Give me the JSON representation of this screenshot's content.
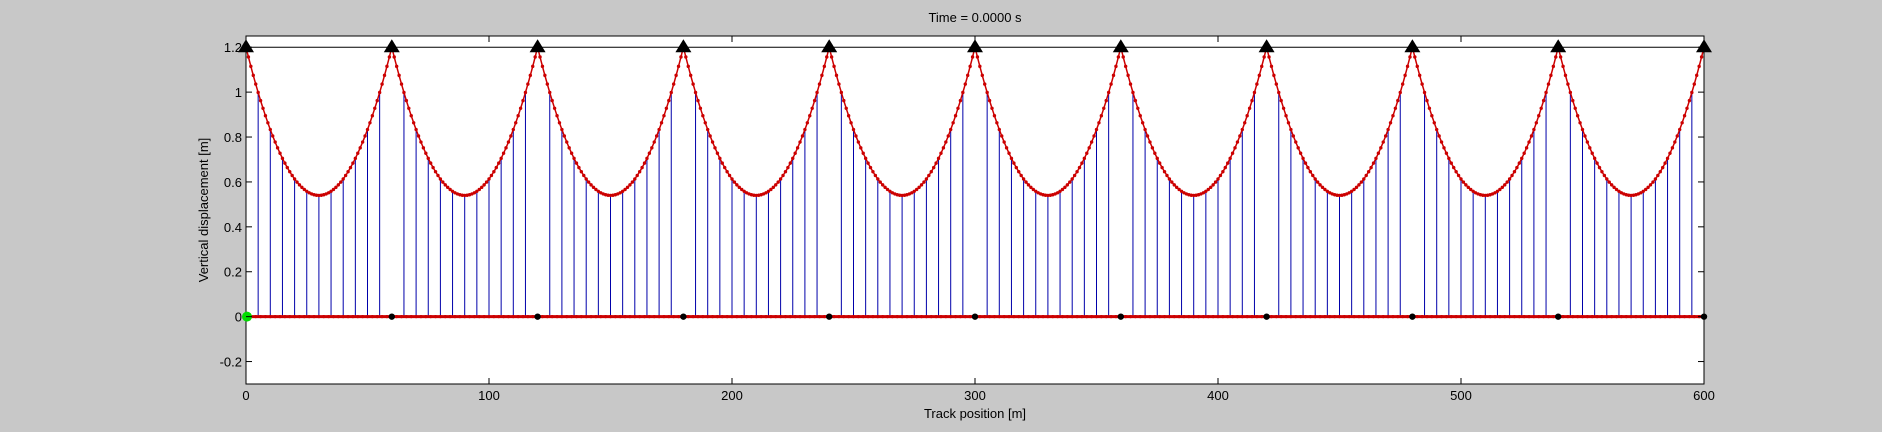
{
  "chart_data": {
    "type": "line",
    "title": "Time = 0.0000 s",
    "xlabel": "Track position [m]",
    "ylabel": "Vertical displacement [m]",
    "xlim": [
      0,
      600
    ],
    "ylim": [
      -0.3,
      1.25
    ],
    "x_ticks": [
      0,
      100,
      200,
      300,
      400,
      500,
      600
    ],
    "x_tick_labels": [
      "0",
      "100",
      "200",
      "300",
      "400",
      "500",
      "600"
    ],
    "y_ticks": [
      -0.2,
      0,
      0.2,
      0.4,
      0.6,
      0.8,
      1,
      1.2
    ],
    "y_tick_labels": [
      "-0.2",
      "0",
      "0.2",
      "0.4",
      "0.6",
      "0.8",
      "1",
      "1.2"
    ],
    "grid": false,
    "support_line_y": 1.2,
    "towers": {
      "x": [
        0,
        60,
        120,
        180,
        240,
        300,
        360,
        420,
        480,
        540,
        600
      ],
      "top_y": 1.2,
      "base_y": 0,
      "top_marker": "black triangle",
      "base_marker": "black dot"
    },
    "cable": {
      "span": 60,
      "min_y": 0.54,
      "top_y": 1.2,
      "node_spacing": 1,
      "color": "#cc0000",
      "marker": "red dots"
    },
    "track": {
      "y": 0,
      "color": "#cc0000"
    },
    "hangers": {
      "spacing": 5,
      "color": "#0000aa"
    },
    "vehicle": {
      "x": 0,
      "y": 0,
      "color": "#00dd00"
    }
  }
}
